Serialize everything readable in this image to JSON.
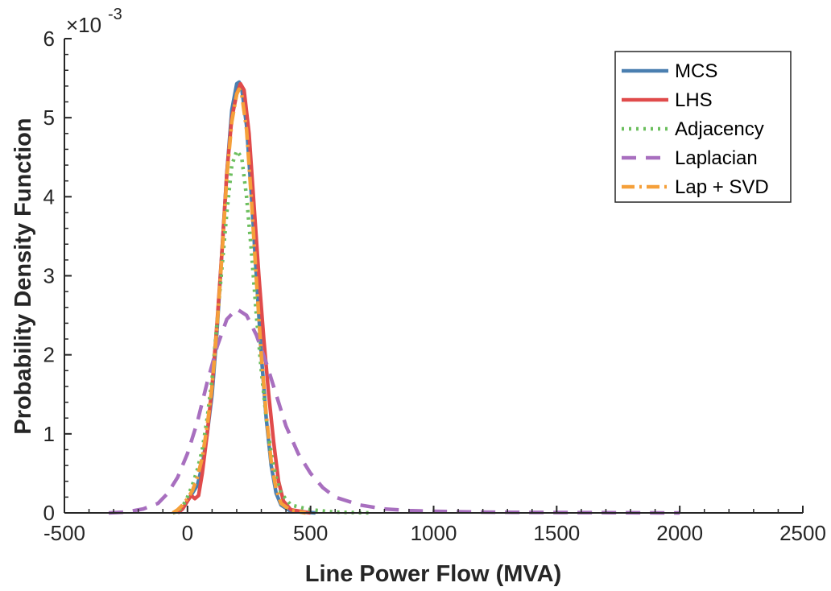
{
  "chart_data": {
    "type": "line",
    "xlabel": "Line Power Flow (MVA)",
    "ylabel": "Probability Density Function",
    "exponent_prefix": "×10",
    "exponent_power": "-3",
    "xlim": [
      -500,
      2500
    ],
    "ylim": [
      0,
      6
    ],
    "x_ticks": [
      "-500",
      "0",
      "500",
      "1000",
      "1500",
      "2000",
      "2500"
    ],
    "y_ticks": [
      "0",
      "1",
      "2",
      "3",
      "4",
      "5",
      "6"
    ],
    "legend_position": "top-right",
    "grid": false,
    "series": [
      {
        "name": "MCS",
        "color": "#4a7fb0",
        "style": "solid",
        "points": [
          [
            -40,
            0
          ],
          [
            -20,
            0.05
          ],
          [
            0,
            0.15
          ],
          [
            20,
            0.25
          ],
          [
            40,
            0.35
          ],
          [
            60,
            0.6
          ],
          [
            80,
            1.0
          ],
          [
            100,
            1.5
          ],
          [
            120,
            2.3
          ],
          [
            140,
            3.3
          ],
          [
            160,
            4.3
          ],
          [
            180,
            5.1
          ],
          [
            200,
            5.43
          ],
          [
            210,
            5.45
          ],
          [
            220,
            5.38
          ],
          [
            240,
            4.9
          ],
          [
            260,
            4.0
          ],
          [
            280,
            3.0
          ],
          [
            300,
            2.0
          ],
          [
            320,
            1.2
          ],
          [
            340,
            0.6
          ],
          [
            360,
            0.25
          ],
          [
            380,
            0.1
          ],
          [
            420,
            0.02
          ],
          [
            520,
            0
          ]
        ]
      },
      {
        "name": "LHS",
        "color": "#e04b4b",
        "style": "solid",
        "points": [
          [
            -40,
            0
          ],
          [
            -20,
            0.05
          ],
          [
            0,
            0.15
          ],
          [
            15,
            0.22
          ],
          [
            30,
            0.18
          ],
          [
            45,
            0.22
          ],
          [
            60,
            0.5
          ],
          [
            80,
            1.0
          ],
          [
            100,
            1.6
          ],
          [
            120,
            2.4
          ],
          [
            140,
            3.3
          ],
          [
            160,
            4.3
          ],
          [
            180,
            5.0
          ],
          [
            200,
            5.3
          ],
          [
            215,
            5.43
          ],
          [
            230,
            5.35
          ],
          [
            250,
            4.8
          ],
          [
            270,
            3.9
          ],
          [
            290,
            3.0
          ],
          [
            310,
            2.2
          ],
          [
            330,
            1.5
          ],
          [
            350,
            0.9
          ],
          [
            370,
            0.4
          ],
          [
            390,
            0.15
          ],
          [
            420,
            0.04
          ],
          [
            500,
            0
          ]
        ]
      },
      {
        "name": "Adjacency",
        "color": "#6cbf5e",
        "style": "dotted",
        "points": [
          [
            -60,
            0
          ],
          [
            -40,
            0.02
          ],
          [
            -20,
            0.08
          ],
          [
            0,
            0.2
          ],
          [
            20,
            0.35
          ],
          [
            40,
            0.55
          ],
          [
            60,
            0.8
          ],
          [
            80,
            1.2
          ],
          [
            100,
            1.7
          ],
          [
            120,
            2.4
          ],
          [
            140,
            3.1
          ],
          [
            160,
            3.8
          ],
          [
            180,
            4.4
          ],
          [
            200,
            4.58
          ],
          [
            220,
            4.5
          ],
          [
            240,
            4.0
          ],
          [
            260,
            3.3
          ],
          [
            280,
            2.5
          ],
          [
            300,
            1.8
          ],
          [
            320,
            1.2
          ],
          [
            340,
            0.75
          ],
          [
            360,
            0.45
          ],
          [
            380,
            0.25
          ],
          [
            420,
            0.1
          ],
          [
            500,
            0.04
          ],
          [
            600,
            0.01
          ],
          [
            750,
            0
          ]
        ]
      },
      {
        "name": "Laplacian",
        "color": "#a86fbf",
        "style": "dashed",
        "points": [
          [
            -320,
            0
          ],
          [
            -250,
            0.01
          ],
          [
            -180,
            0.05
          ],
          [
            -120,
            0.12
          ],
          [
            -80,
            0.25
          ],
          [
            -40,
            0.45
          ],
          [
            0,
            0.75
          ],
          [
            40,
            1.15
          ],
          [
            80,
            1.65
          ],
          [
            120,
            2.1
          ],
          [
            160,
            2.45
          ],
          [
            200,
            2.58
          ],
          [
            240,
            2.5
          ],
          [
            280,
            2.25
          ],
          [
            320,
            1.9
          ],
          [
            360,
            1.5
          ],
          [
            400,
            1.1
          ],
          [
            450,
            0.75
          ],
          [
            500,
            0.5
          ],
          [
            550,
            0.32
          ],
          [
            600,
            0.2
          ],
          [
            700,
            0.1
          ],
          [
            800,
            0.05
          ],
          [
            900,
            0.03
          ],
          [
            1000,
            0.02
          ],
          [
            1200,
            0.01
          ],
          [
            1500,
            0.005
          ],
          [
            2000,
            0
          ]
        ]
      },
      {
        "name": "Lap + SVD",
        "color": "#f5a03a",
        "style": "dashdot",
        "points": [
          [
            -60,
            0
          ],
          [
            -40,
            0.04
          ],
          [
            -20,
            0.1
          ],
          [
            0,
            0.18
          ],
          [
            20,
            0.28
          ],
          [
            40,
            0.45
          ],
          [
            60,
            0.7
          ],
          [
            80,
            1.1
          ],
          [
            100,
            1.6
          ],
          [
            120,
            2.35
          ],
          [
            140,
            3.25
          ],
          [
            160,
            4.25
          ],
          [
            180,
            4.95
          ],
          [
            200,
            5.3
          ],
          [
            210,
            5.36
          ],
          [
            220,
            5.3
          ],
          [
            240,
            4.85
          ],
          [
            260,
            3.95
          ],
          [
            280,
            2.95
          ],
          [
            300,
            2.0
          ],
          [
            320,
            1.25
          ],
          [
            340,
            0.65
          ],
          [
            360,
            0.3
          ],
          [
            380,
            0.12
          ],
          [
            420,
            0.03
          ],
          [
            480,
            0
          ]
        ]
      }
    ]
  }
}
